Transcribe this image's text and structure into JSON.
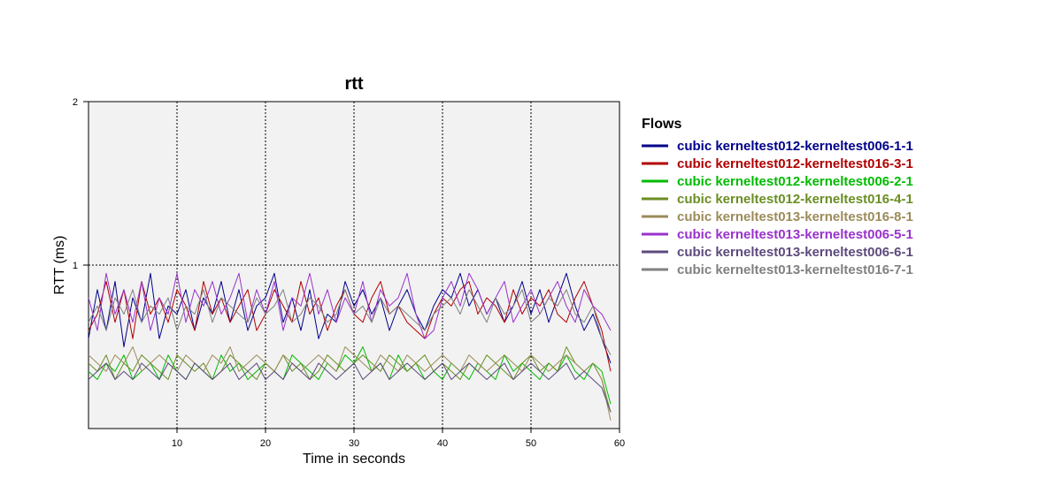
{
  "chart_data": {
    "type": "line",
    "title": "rtt",
    "xlabel": "Time in seconds",
    "ylabel": "RTT (ms)",
    "xlim": [
      0,
      60
    ],
    "ylim": [
      0,
      2
    ],
    "x_ticks": [
      10,
      20,
      30,
      40,
      50,
      60
    ],
    "y_ticks": [
      1,
      2
    ],
    "grid": true,
    "legend_title": "Flows",
    "legend_position": "right",
    "x_end": 59,
    "series": [
      {
        "name": "cubic kerneltest012-kerneltest006-1-1",
        "color": "#00008b",
        "values": [
          0.55,
          0.85,
          0.6,
          0.9,
          0.5,
          0.8,
          0.65,
          0.95,
          0.55,
          0.75,
          0.7,
          0.85,
          0.6,
          0.8,
          0.7,
          0.9,
          0.65,
          0.85,
          0.6,
          0.75,
          0.8,
          0.95,
          0.65,
          0.8,
          0.6,
          0.85,
          0.55,
          0.7,
          0.65,
          0.9,
          0.75,
          0.85,
          0.7,
          0.8,
          0.6,
          0.75,
          0.85,
          0.7,
          0.6,
          0.75,
          0.85,
          0.8,
          0.95,
          0.75,
          0.85,
          0.7,
          0.8,
          0.65,
          0.75,
          0.9,
          0.7,
          0.85,
          0.65,
          0.8,
          0.95,
          0.75,
          0.6,
          0.7,
          0.55,
          0.4
        ]
      },
      {
        "name": "cubic kerneltest012-kerneltest016-3-1",
        "color": "#b00000",
        "values": [
          0.6,
          0.7,
          0.9,
          0.65,
          0.85,
          0.55,
          0.9,
          0.7,
          0.8,
          0.65,
          0.85,
          0.75,
          0.6,
          0.9,
          0.7,
          0.8,
          0.65,
          0.75,
          0.85,
          0.6,
          0.7,
          0.85,
          0.75,
          0.65,
          0.9,
          0.7,
          0.8,
          0.6,
          0.75,
          0.85,
          0.7,
          0.65,
          0.8,
          0.9,
          0.7,
          0.75,
          0.65,
          0.6,
          0.55,
          0.7,
          0.8,
          0.75,
          0.85,
          0.9,
          0.7,
          0.8,
          0.75,
          0.65,
          0.85,
          0.7,
          0.8,
          0.75,
          0.85,
          0.7,
          0.65,
          0.8,
          0.9,
          0.75,
          0.6,
          0.35
        ]
      },
      {
        "name": "cubic kerneltest012-kerneltest006-2-1",
        "color": "#00bb00",
        "values": [
          0.35,
          0.3,
          0.4,
          0.35,
          0.45,
          0.3,
          0.35,
          0.4,
          0.3,
          0.45,
          0.35,
          0.3,
          0.4,
          0.35,
          0.3,
          0.45,
          0.35,
          0.4,
          0.3,
          0.35,
          0.4,
          0.35,
          0.3,
          0.45,
          0.4,
          0.35,
          0.3,
          0.4,
          0.35,
          0.45,
          0.4,
          0.5,
          0.35,
          0.4,
          0.3,
          0.45,
          0.35,
          0.4,
          0.3,
          0.35,
          0.3,
          0.4,
          0.35,
          0.3,
          0.4,
          0.35,
          0.3,
          0.45,
          0.35,
          0.4,
          0.35,
          0.3,
          0.4,
          0.35,
          0.45,
          0.35,
          0.3,
          0.4,
          0.35,
          0.15
        ]
      },
      {
        "name": "cubic kerneltest012-kerneltest016-4-1",
        "color": "#6b8e23",
        "values": [
          0.4,
          0.35,
          0.45,
          0.3,
          0.4,
          0.35,
          0.45,
          0.4,
          0.35,
          0.3,
          0.45,
          0.4,
          0.35,
          0.4,
          0.3,
          0.35,
          0.45,
          0.4,
          0.35,
          0.3,
          0.4,
          0.35,
          0.45,
          0.35,
          0.4,
          0.3,
          0.35,
          0.45,
          0.4,
          0.35,
          0.4,
          0.45,
          0.4,
          0.35,
          0.45,
          0.4,
          0.35,
          0.4,
          0.45,
          0.35,
          0.4,
          0.35,
          0.3,
          0.4,
          0.35,
          0.45,
          0.4,
          0.35,
          0.3,
          0.4,
          0.45,
          0.35,
          0.4,
          0.35,
          0.5,
          0.4,
          0.35,
          0.4,
          0.3,
          0.1
        ]
      },
      {
        "name": "cubic kerneltest013-kerneltest016-8-1",
        "color": "#9c8b5a",
        "values": [
          0.45,
          0.4,
          0.35,
          0.45,
          0.4,
          0.5,
          0.35,
          0.4,
          0.45,
          0.4,
          0.35,
          0.45,
          0.4,
          0.35,
          0.45,
          0.4,
          0.5,
          0.35,
          0.4,
          0.45,
          0.4,
          0.35,
          0.45,
          0.4,
          0.35,
          0.4,
          0.45,
          0.4,
          0.35,
          0.5,
          0.45,
          0.4,
          0.35,
          0.45,
          0.4,
          0.35,
          0.45,
          0.4,
          0.35,
          0.4,
          0.45,
          0.4,
          0.35,
          0.45,
          0.4,
          0.35,
          0.4,
          0.45,
          0.4,
          0.35,
          0.45,
          0.4,
          0.35,
          0.4,
          0.45,
          0.4,
          0.35,
          0.4,
          0.3,
          0.05
        ]
      },
      {
        "name": "cubic kerneltest013-kerneltest006-5-1",
        "color": "#9932cc",
        "values": [
          0.8,
          0.6,
          0.95,
          0.7,
          0.85,
          0.65,
          0.9,
          0.6,
          0.8,
          0.7,
          0.95,
          0.65,
          0.85,
          0.75,
          0.9,
          0.7,
          0.8,
          0.95,
          0.65,
          0.85,
          0.7,
          0.9,
          0.6,
          0.8,
          0.75,
          0.95,
          0.7,
          0.85,
          0.65,
          0.8,
          0.7,
          0.9,
          0.65,
          0.85,
          0.75,
          0.8,
          0.95,
          0.7,
          0.55,
          0.6,
          0.8,
          0.9,
          0.75,
          0.95,
          0.85,
          0.7,
          0.8,
          0.9,
          0.65,
          0.75,
          0.85,
          0.7,
          0.8,
          0.9,
          0.75,
          0.65,
          0.85,
          0.75,
          0.7,
          0.6
        ]
      },
      {
        "name": "cubic kerneltest013-kerneltest006-6-1",
        "color": "#5d4a7c",
        "values": [
          0.3,
          0.35,
          0.4,
          0.3,
          0.35,
          0.3,
          0.4,
          0.35,
          0.3,
          0.4,
          0.35,
          0.3,
          0.4,
          0.35,
          0.3,
          0.35,
          0.4,
          0.3,
          0.35,
          0.4,
          0.3,
          0.35,
          0.3,
          0.4,
          0.35,
          0.3,
          0.4,
          0.35,
          0.3,
          0.35,
          0.4,
          0.3,
          0.35,
          0.4,
          0.3,
          0.35,
          0.4,
          0.35,
          0.3,
          0.35,
          0.4,
          0.3,
          0.35,
          0.4,
          0.35,
          0.3,
          0.35,
          0.4,
          0.3,
          0.35,
          0.4,
          0.35,
          0.3,
          0.35,
          0.4,
          0.3,
          0.35,
          0.3,
          0.25,
          0.1
        ]
      },
      {
        "name": "cubic kerneltest013-kerneltest016-7-1",
        "color": "#808080",
        "values": [
          0.65,
          0.75,
          0.6,
          0.8,
          0.7,
          0.85,
          0.65,
          0.75,
          0.7,
          0.8,
          0.6,
          0.75,
          0.7,
          0.85,
          0.65,
          0.8,
          0.75,
          0.7,
          0.65,
          0.8,
          0.7,
          0.75,
          0.85,
          0.65,
          0.7,
          0.8,
          0.75,
          0.65,
          0.7,
          0.85,
          0.7,
          0.75,
          0.65,
          0.8,
          0.7,
          0.75,
          0.7,
          0.65,
          0.6,
          0.7,
          0.75,
          0.8,
          0.7,
          0.85,
          0.75,
          0.65,
          0.8,
          0.7,
          0.75,
          0.85,
          0.65,
          0.7,
          0.8,
          0.75,
          0.85,
          0.7,
          0.65,
          0.75,
          0.55,
          0.45
        ]
      }
    ]
  }
}
